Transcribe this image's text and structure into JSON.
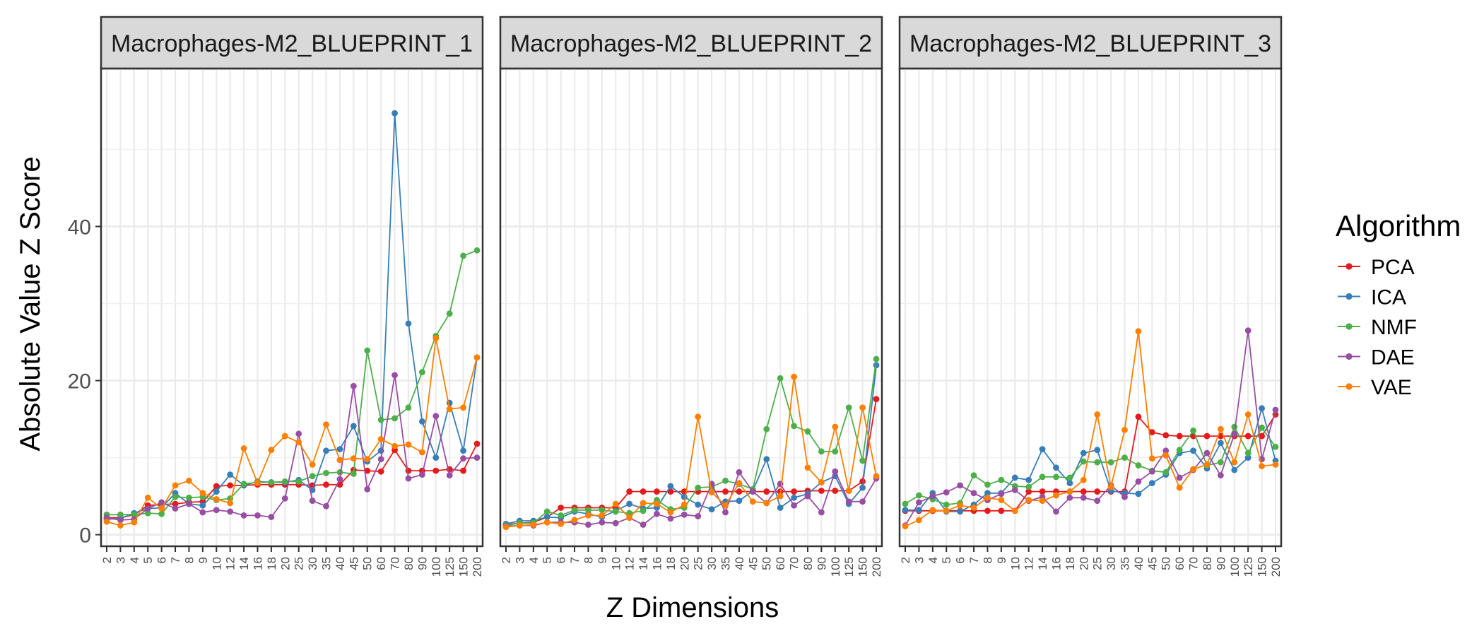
{
  "chart_data": {
    "type": "line",
    "xlabel": "Z Dimensions",
    "ylabel": "Absolute Value Z Score",
    "ylim": [
      -1.5,
      60.5
    ],
    "yticks": [
      0,
      20,
      40
    ],
    "grid": true,
    "legend": {
      "title": "Algorithm",
      "position": "right"
    },
    "x": [
      "2",
      "3",
      "4",
      "5",
      "6",
      "7",
      "8",
      "9",
      "10",
      "12",
      "14",
      "16",
      "18",
      "20",
      "25",
      "30",
      "35",
      "40",
      "45",
      "50",
      "60",
      "70",
      "80",
      "90",
      "100",
      "125",
      "150",
      "200"
    ],
    "colors": {
      "PCA": "#e41a1c",
      "ICA": "#377eb8",
      "NMF": "#4daf4a",
      "DAE": "#984ea3",
      "VAE": "#ff7f00"
    },
    "legend_order": [
      "PCA",
      "ICA",
      "NMF",
      "DAE",
      "VAE"
    ],
    "panels": [
      {
        "title": "Macrophages-M2_BLUEPRINT_1",
        "series": [
          {
            "name": "PCA",
            "values": [
              2.2,
              2.2,
              2.6,
              3.8,
              3.9,
              4.0,
              4.2,
              4.3,
              6.3,
              6.4,
              6.4,
              6.5,
              6.5,
              6.5,
              6.5,
              6.4,
              6.5,
              6.5,
              8.4,
              8.3,
              8.2,
              11.0,
              8.3,
              8.3,
              8.3,
              8.5,
              8.3,
              11.8
            ]
          },
          {
            "name": "ICA",
            "values": [
              2.0,
              2.1,
              2.8,
              3.4,
              3.5,
              5.4,
              4.0,
              3.8,
              5.6,
              7.8,
              6.4,
              6.9,
              6.8,
              6.8,
              7.1,
              5.8,
              10.9,
              11.1,
              14.1,
              9.5,
              10.9,
              54.7,
              27.4,
              14.7,
              10.0,
              17.1,
              10.9,
              23.0
            ]
          },
          {
            "name": "NMF",
            "values": [
              2.6,
              2.6,
              2.6,
              2.8,
              2.7,
              4.9,
              4.8,
              4.9,
              4.5,
              4.7,
              6.6,
              6.8,
              6.8,
              6.9,
              6.9,
              7.6,
              8.0,
              8.1,
              7.9,
              23.9,
              14.9,
              15.1,
              16.5,
              21.1,
              25.8,
              28.7,
              36.2,
              36.9
            ]
          },
          {
            "name": "DAE",
            "values": [
              2.2,
              1.9,
              2.0,
              3.4,
              4.2,
              3.4,
              4.0,
              2.9,
              3.2,
              3.0,
              2.5,
              2.5,
              2.3,
              4.7,
              13.1,
              4.4,
              3.7,
              7.2,
              19.3,
              5.9,
              9.8,
              20.7,
              7.3,
              7.8,
              15.4,
              7.7,
              9.9,
              10.0
            ]
          },
          {
            "name": "VAE",
            "values": [
              1.7,
              1.2,
              1.6,
              4.8,
              3.4,
              6.4,
              7.0,
              5.4,
              4.6,
              4.1,
              11.2,
              6.7,
              11.0,
              12.8,
              12.0,
              9.1,
              14.3,
              9.7,
              9.9,
              9.8,
              12.4,
              11.5,
              11.7,
              10.7,
              25.5,
              16.3,
              16.5,
              23.0
            ]
          }
        ]
      },
      {
        "title": "Macrophages-M2_BLUEPRINT_2",
        "series": [
          {
            "name": "PCA",
            "values": [
              1.3,
              1.5,
              1.6,
              2.3,
              3.5,
              3.5,
              3.5,
              3.5,
              3.5,
              5.6,
              5.6,
              5.6,
              5.6,
              5.6,
              5.6,
              5.6,
              5.6,
              5.6,
              5.6,
              5.6,
              5.6,
              5.6,
              5.7,
              5.7,
              5.7,
              5.7,
              6.9,
              17.6
            ]
          },
          {
            "name": "ICA",
            "values": [
              1.4,
              1.8,
              1.8,
              2.3,
              2.2,
              3.0,
              2.7,
              2.3,
              3.1,
              4.0,
              3.4,
              3.5,
              6.3,
              4.9,
              3.9,
              3.3,
              4.3,
              4.4,
              5.7,
              9.8,
              3.5,
              4.8,
              5.3,
              6.8,
              7.6,
              4.0,
              6.1,
              22.0
            ]
          },
          {
            "name": "NMF",
            "values": [
              1.2,
              1.5,
              1.5,
              3.0,
              2.5,
              3.2,
              3.2,
              3.2,
              3.0,
              2.8,
              3.1,
              4.5,
              3.3,
              3.5,
              6.1,
              6.2,
              7.0,
              6.6,
              5.9,
              13.7,
              20.3,
              14.1,
              13.4,
              10.8,
              10.8,
              16.5,
              9.6,
              22.8
            ]
          },
          {
            "name": "DAE",
            "values": [
              1.1,
              1.2,
              1.2,
              1.6,
              1.6,
              1.6,
              1.3,
              1.6,
              1.5,
              2.2,
              1.3,
              2.7,
              2.1,
              2.6,
              2.4,
              6.6,
              2.9,
              8.1,
              5.6,
              4.1,
              6.6,
              3.8,
              5.0,
              2.9,
              8.2,
              4.3,
              4.3,
              7.3
            ]
          },
          {
            "name": "VAE",
            "values": [
              1.0,
              1.2,
              1.3,
              1.6,
              1.4,
              1.9,
              2.5,
              2.5,
              4.0,
              2.2,
              4.1,
              4.0,
              2.9,
              3.9,
              15.3,
              5.5,
              3.8,
              6.7,
              4.3,
              4.1,
              5.0,
              20.5,
              8.7,
              6.8,
              14.0,
              5.7,
              16.5,
              7.6
            ]
          }
        ]
      },
      {
        "title": "Macrophages-M2_BLUEPRINT_3",
        "series": [
          {
            "name": "PCA",
            "values": [
              3.1,
              3.1,
              3.1,
              3.1,
              3.1,
              3.1,
              3.1,
              3.1,
              3.1,
              5.6,
              5.6,
              5.6,
              5.6,
              5.6,
              5.6,
              5.6,
              5.6,
              15.3,
              13.3,
              12.9,
              12.8,
              12.8,
              12.8,
              12.8,
              12.8,
              12.8,
              12.8,
              15.6
            ]
          },
          {
            "name": "ICA",
            "values": [
              3.2,
              3.2,
              5.4,
              3.0,
              3.0,
              3.9,
              5.4,
              5.4,
              7.4,
              7.1,
              11.1,
              8.7,
              6.7,
              10.6,
              11.0,
              5.7,
              5.4,
              5.3,
              6.7,
              7.8,
              10.6,
              10.9,
              8.6,
              11.9,
              8.4,
              10.0,
              16.4,
              9.6
            ]
          },
          {
            "name": "NMF",
            "values": [
              4.0,
              5.1,
              4.6,
              3.9,
              4.1,
              7.7,
              6.5,
              7.1,
              6.3,
              6.2,
              7.5,
              7.5,
              7.4,
              9.5,
              9.4,
              9.4,
              10.0,
              9.0,
              8.3,
              8.1,
              11.0,
              13.5,
              9.0,
              9.4,
              14.0,
              10.6,
              13.9,
              11.4
            ]
          },
          {
            "name": "DAE",
            "values": [
              1.2,
              4.2,
              5.0,
              5.5,
              6.4,
              5.4,
              4.5,
              5.3,
              5.8,
              4.4,
              4.9,
              3.0,
              4.8,
              4.8,
              4.4,
              6.4,
              4.9,
              6.9,
              8.2,
              10.9,
              7.4,
              8.4,
              10.6,
              7.7,
              13.1,
              26.5,
              9.8,
              16.2
            ]
          },
          {
            "name": "VAE",
            "values": [
              1.1,
              1.9,
              3.2,
              3.1,
              3.8,
              3.5,
              4.8,
              4.5,
              3.1,
              4.5,
              4.4,
              5.1,
              5.6,
              7.1,
              15.6,
              6.2,
              13.6,
              26.4,
              9.9,
              10.3,
              6.1,
              8.5,
              9.1,
              13.7,
              9.4,
              15.6,
              8.9,
              9.1
            ]
          }
        ]
      }
    ]
  }
}
